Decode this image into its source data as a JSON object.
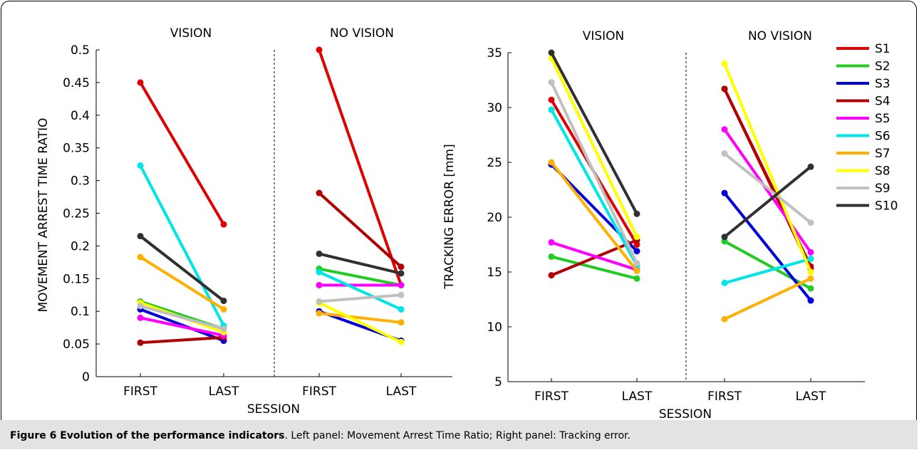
{
  "caption": {
    "title": "Figure 6 Evolution of the performance indicators",
    "text": ". Left panel: Movement Arrest Time Ratio; Right panel: Tracking error."
  },
  "chart_data": [
    {
      "type": "line",
      "title": "",
      "xlabel": "SESSION",
      "ylabel": "MOVEMENT ARREST TIME RATIO",
      "ylim": [
        0,
        0.5
      ],
      "yticks": [
        "0",
        "0.05",
        "0.1",
        "0.15",
        "0.2",
        "0.25",
        "0.3",
        "0.35",
        "0.4",
        "0.45",
        "0.5"
      ],
      "panels": [
        {
          "label": "VISION",
          "categories": [
            "FIRST",
            "LAST"
          ]
        },
        {
          "label": "NO VISION",
          "categories": [
            "FIRST",
            "LAST"
          ]
        }
      ],
      "grid": false,
      "series": [
        {
          "name": "S1",
          "color": "#e00000",
          "vision": [
            0.45,
            0.233
          ],
          "no_vision": [
            0.5,
            0.14
          ]
        },
        {
          "name": "S2",
          "color": "#22cc22",
          "vision": [
            0.115,
            0.073
          ],
          "no_vision": [
            0.165,
            0.14
          ]
        },
        {
          "name": "S3",
          "color": "#0000dd",
          "vision": [
            0.103,
            0.055
          ],
          "no_vision": [
            0.1,
            0.055
          ]
        },
        {
          "name": "S4",
          "color": "#b00000",
          "vision": [
            0.052,
            0.06
          ],
          "no_vision": [
            0.281,
            0.168
          ]
        },
        {
          "name": "S5",
          "color": "#ff00ff",
          "vision": [
            0.09,
            0.063
          ],
          "no_vision": [
            0.14,
            0.14
          ]
        },
        {
          "name": "S6",
          "color": "#00e5e5",
          "vision": [
            0.323,
            0.078
          ],
          "no_vision": [
            0.16,
            0.103
          ]
        },
        {
          "name": "S7",
          "color": "#ffb000",
          "vision": [
            0.183,
            0.103
          ],
          "no_vision": [
            0.097,
            0.083
          ]
        },
        {
          "name": "S8",
          "color": "#ffff00",
          "vision": [
            0.113,
            0.068
          ],
          "no_vision": [
            0.113,
            0.053
          ]
        },
        {
          "name": "S9",
          "color": "#c0c0c0",
          "vision": [
            0.108,
            0.073
          ],
          "no_vision": [
            0.115,
            0.125
          ]
        },
        {
          "name": "S10",
          "color": "#303030",
          "vision": [
            0.215,
            0.116
          ],
          "no_vision": [
            0.188,
            0.158
          ]
        }
      ]
    },
    {
      "type": "line",
      "title": "",
      "xlabel": "SESSION",
      "ylabel": "TRACKING ERROR [mm]",
      "ylim": [
        5,
        35
      ],
      "yticks": [
        "5",
        "10",
        "15",
        "20",
        "25",
        "30",
        "35"
      ],
      "panels": [
        {
          "label": "VISION",
          "categories": [
            "FIRST",
            "LAST"
          ]
        },
        {
          "label": "NO VISION",
          "categories": [
            "FIRST",
            "LAST"
          ]
        }
      ],
      "grid": false,
      "legend": {
        "position": "top-right",
        "entries": [
          "S1",
          "S2",
          "S3",
          "S4",
          "S5",
          "S6",
          "S7",
          "S8",
          "S9",
          "S10"
        ]
      },
      "series": [
        {
          "name": "S1",
          "color": "#e00000",
          "vision": [
            30.7,
            17.5
          ],
          "no_vision": [
            31.7,
            15.3
          ]
        },
        {
          "name": "S2",
          "color": "#22cc22",
          "vision": [
            16.4,
            14.4
          ],
          "no_vision": [
            17.8,
            13.5
          ]
        },
        {
          "name": "S3",
          "color": "#0000dd",
          "vision": [
            24.8,
            16.9
          ],
          "no_vision": [
            22.2,
            12.4
          ]
        },
        {
          "name": "S4",
          "color": "#b00000",
          "vision": [
            14.7,
            17.9
          ],
          "no_vision": [
            31.7,
            15.5
          ]
        },
        {
          "name": "S5",
          "color": "#ff00ff",
          "vision": [
            17.7,
            15.2
          ],
          "no_vision": [
            28.0,
            16.8
          ]
        },
        {
          "name": "S6",
          "color": "#00e5e5",
          "vision": [
            29.8,
            15.6
          ],
          "no_vision": [
            14.0,
            16.2
          ]
        },
        {
          "name": "S7",
          "color": "#ffb000",
          "vision": [
            25.0,
            15.1
          ],
          "no_vision": [
            10.7,
            14.4
          ]
        },
        {
          "name": "S8",
          "color": "#ffff00",
          "vision": [
            34.5,
            18.2
          ],
          "no_vision": [
            34.0,
            15.0
          ]
        },
        {
          "name": "S9",
          "color": "#c0c0c0",
          "vision": [
            32.3,
            15.8
          ],
          "no_vision": [
            25.8,
            19.5
          ]
        },
        {
          "name": "S10",
          "color": "#303030",
          "vision": [
            35.0,
            20.3
          ],
          "no_vision": [
            18.2,
            24.6
          ]
        }
      ]
    }
  ]
}
